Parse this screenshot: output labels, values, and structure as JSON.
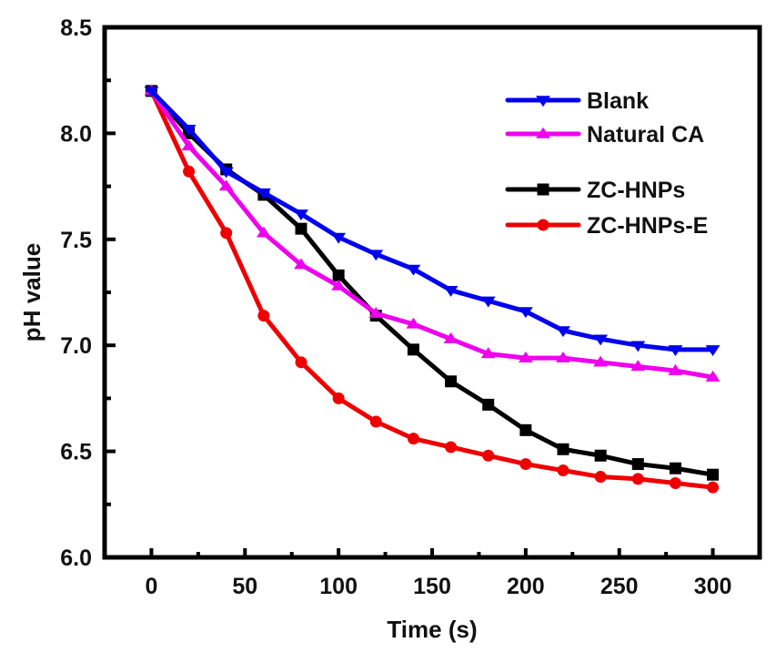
{
  "chart_data": {
    "type": "line",
    "title": "",
    "xlabel": "Time (s)",
    "ylabel": "pH value",
    "xlim": [
      -25,
      325
    ],
    "ylim": [
      6.0,
      8.5
    ],
    "xticks": [
      0,
      50,
      100,
      150,
      200,
      250,
      300
    ],
    "xtick_labels": [
      "0",
      "50",
      "100",
      "150",
      "200",
      "250",
      "300"
    ],
    "yticks": [
      6.0,
      6.5,
      7.0,
      7.5,
      8.0,
      8.5
    ],
    "ytick_labels": [
      "6.0",
      "6.5",
      "7.0",
      "7.5",
      "8.0",
      "8.5"
    ],
    "grid": false,
    "legend_position": "top-right",
    "x": [
      0,
      20,
      40,
      60,
      80,
      100,
      120,
      140,
      160,
      180,
      200,
      220,
      240,
      260,
      280,
      300
    ],
    "series": [
      {
        "name": "Blank",
        "color": "#0000ee",
        "marker": "triangle-down",
        "values": [
          8.2,
          8.02,
          7.82,
          7.72,
          7.62,
          7.51,
          7.43,
          7.36,
          7.26,
          7.21,
          7.16,
          7.07,
          7.03,
          7.0,
          6.98,
          6.98
        ]
      },
      {
        "name": "Natural CA",
        "color": "#ee00ee",
        "marker": "triangle-up",
        "values": [
          8.2,
          7.94,
          7.75,
          7.53,
          7.38,
          7.28,
          7.15,
          7.1,
          7.03,
          6.96,
          6.94,
          6.94,
          6.92,
          6.9,
          6.88,
          6.85
        ]
      },
      {
        "name": "ZC-HNPs",
        "color": "#000000",
        "marker": "square",
        "values": [
          8.2,
          8.0,
          7.83,
          7.71,
          7.55,
          7.33,
          7.14,
          6.98,
          6.83,
          6.72,
          6.6,
          6.51,
          6.48,
          6.44,
          6.42,
          6.39
        ]
      },
      {
        "name": "ZC-HNPs-E",
        "color": "#ee0000",
        "marker": "circle",
        "values": [
          8.2,
          7.82,
          7.53,
          7.14,
          6.92,
          6.75,
          6.64,
          6.56,
          6.52,
          6.48,
          6.44,
          6.41,
          6.38,
          6.37,
          6.35,
          6.33
        ]
      }
    ]
  }
}
